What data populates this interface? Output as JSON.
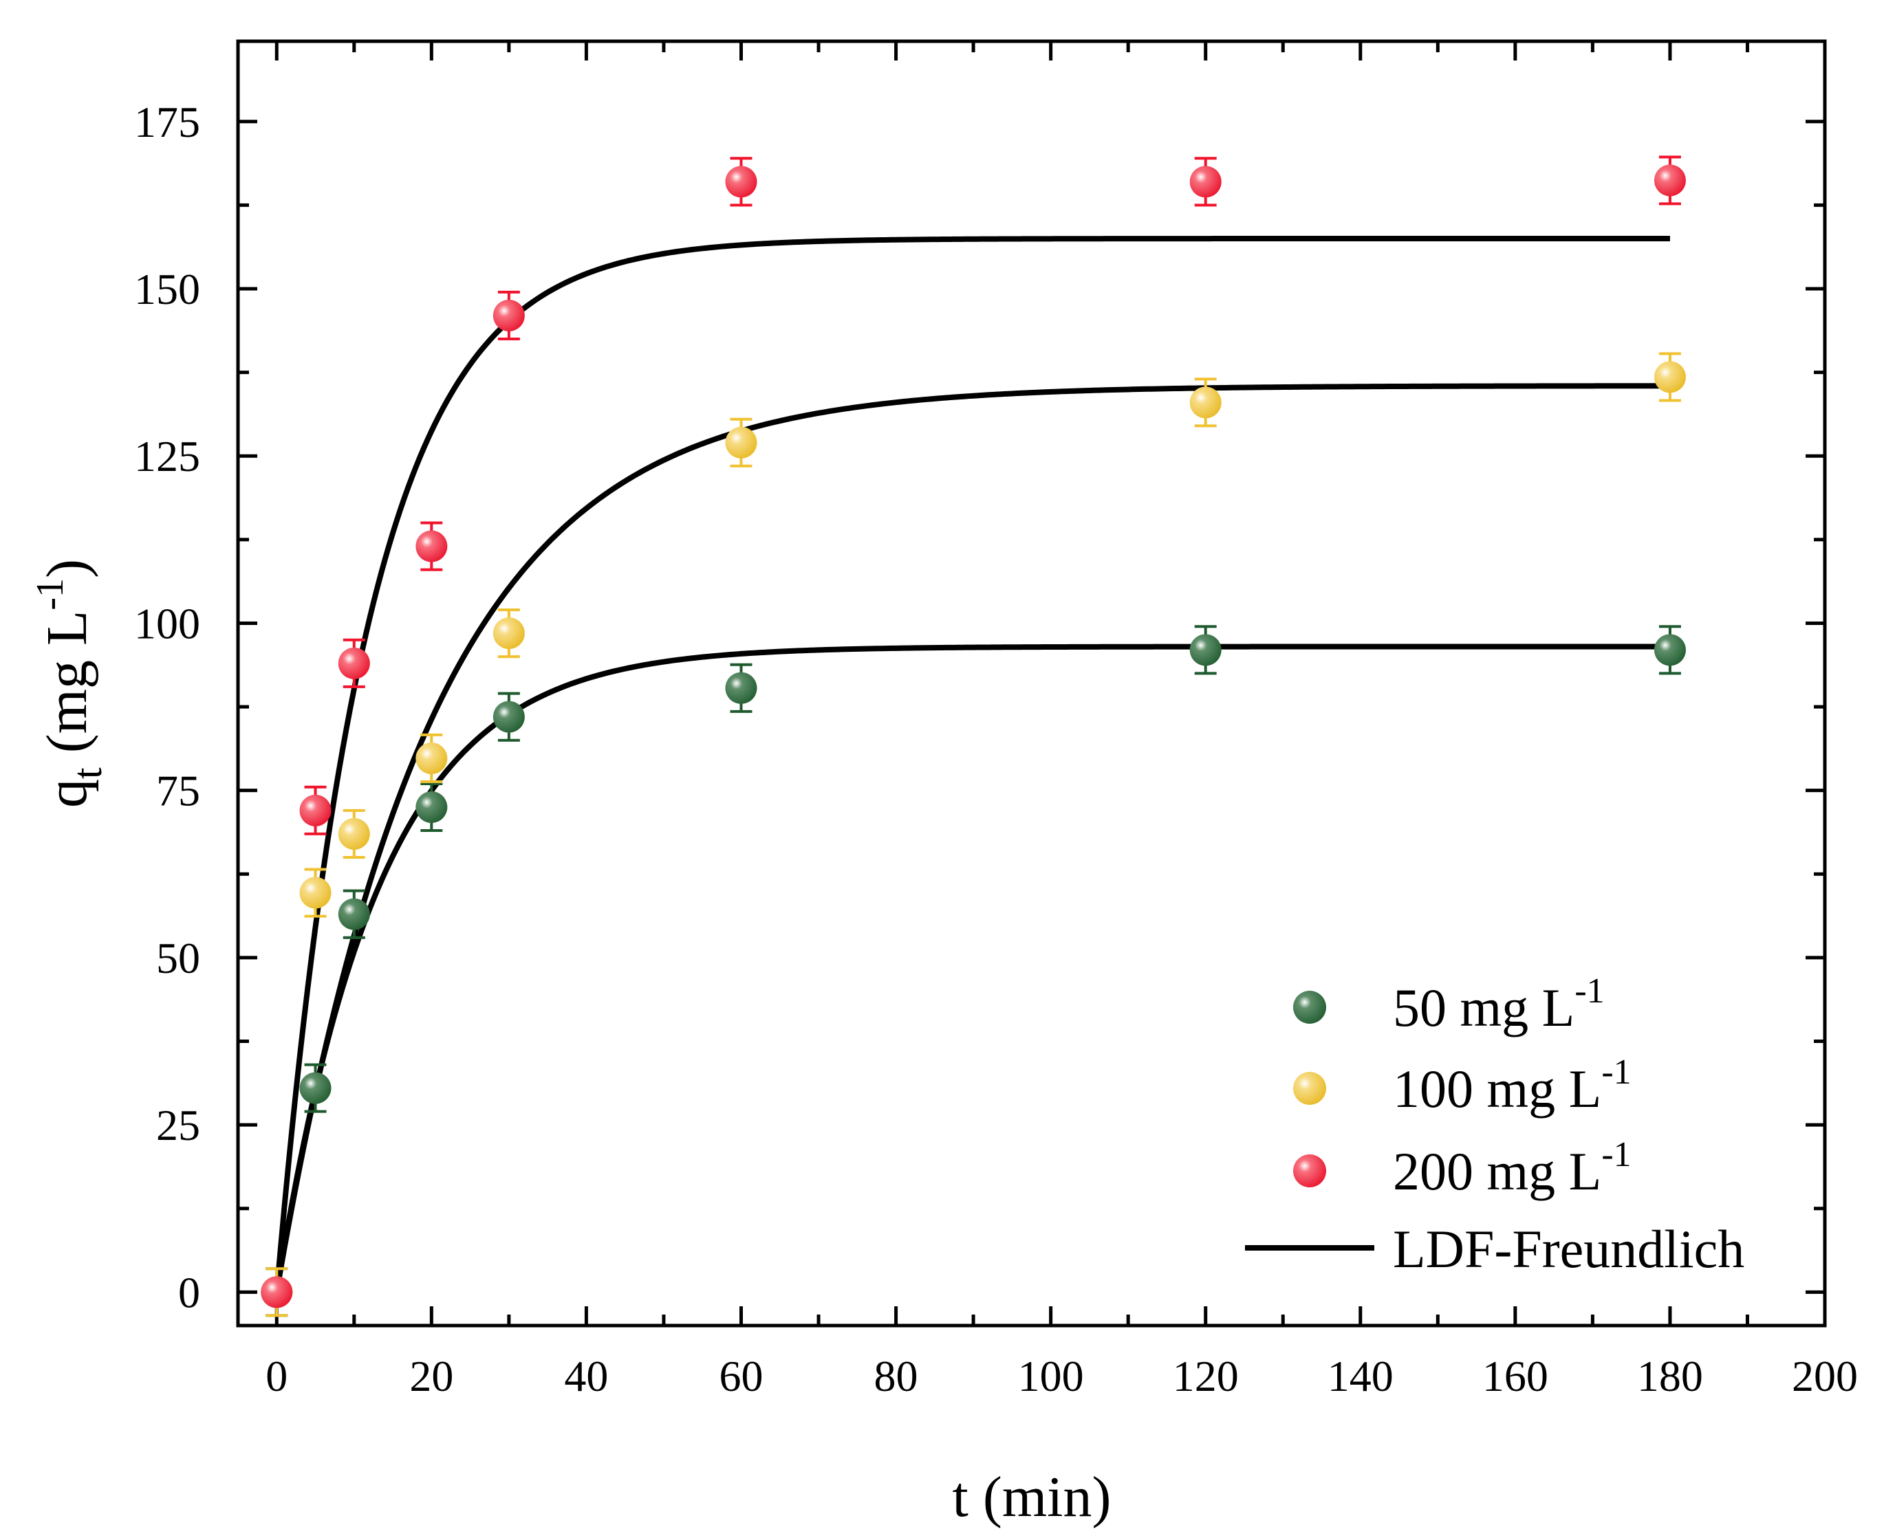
{
  "chart_data": {
    "type": "scatter",
    "xlabel": "t (min)",
    "ylabel": {
      "main": "q",
      "sub": "t",
      "units_prefix": " (mg L",
      "units_sup": "-1",
      "units_suffix": ")"
    },
    "xlim": [
      -5,
      200
    ],
    "ylim": [
      -5,
      187
    ],
    "x_ticks": [
      0,
      20,
      40,
      60,
      80,
      100,
      120,
      140,
      160,
      180,
      200
    ],
    "y_ticks": [
      0,
      25,
      50,
      75,
      100,
      125,
      150,
      175
    ],
    "legend_position": "bottom-right",
    "series": [
      {
        "name": "50 mg L-1",
        "label_main": "50 mg L",
        "label_sup": "-1",
        "color": "#1f5a2e",
        "points": [
          {
            "x": 0,
            "y": 0,
            "err": 3.5
          },
          {
            "x": 5,
            "y": 30.5,
            "err": 3.5
          },
          {
            "x": 10,
            "y": 56.5,
            "err": 3.5
          },
          {
            "x": 20,
            "y": 72.5,
            "err": 3.5
          },
          {
            "x": 30,
            "y": 86,
            "err": 3.5
          },
          {
            "x": 60,
            "y": 90.3,
            "err": 3.5
          },
          {
            "x": 120,
            "y": 96,
            "err": 3.5
          },
          {
            "x": 180,
            "y": 96,
            "err": 3.5
          }
        ],
        "fit": {
          "qe": 96.5,
          "k": 0.075
        }
      },
      {
        "name": "100 mg L-1",
        "label_main": "100 mg L",
        "label_sup": "-1",
        "color": "#f0c232",
        "points": [
          {
            "x": 0,
            "y": 0,
            "err": 3.5
          },
          {
            "x": 5,
            "y": 59.7,
            "err": 3.5
          },
          {
            "x": 10,
            "y": 68.5,
            "err": 3.5
          },
          {
            "x": 20,
            "y": 79.8,
            "err": 3.5
          },
          {
            "x": 30,
            "y": 98.5,
            "err": 3.5
          },
          {
            "x": 60,
            "y": 127,
            "err": 3.5
          },
          {
            "x": 120,
            "y": 133,
            "err": 3.5
          },
          {
            "x": 180,
            "y": 136.8,
            "err": 3.5
          }
        ],
        "fit": {
          "qe": 135.5,
          "k": 0.05
        }
      },
      {
        "name": "200 mg L-1",
        "label_main": "200 mg L",
        "label_sup": "-1",
        "color": "#f0142d",
        "points": [
          {
            "x": 0,
            "y": 0,
            "err": 0
          },
          {
            "x": 5,
            "y": 72,
            "err": 3.5
          },
          {
            "x": 10,
            "y": 94,
            "err": 3.5
          },
          {
            "x": 20,
            "y": 111.5,
            "err": 3.5
          },
          {
            "x": 30,
            "y": 146,
            "err": 3.5
          },
          {
            "x": 60,
            "y": 166,
            "err": 3.5
          },
          {
            "x": 120,
            "y": 166,
            "err": 3.5
          },
          {
            "x": 180,
            "y": 166.2,
            "err": 3.5
          }
        ],
        "fit": {
          "qe": 157.5,
          "k": 0.085
        }
      }
    ],
    "fit_legend_label": "LDF-Freundlich",
    "fit_color": "#000000"
  }
}
